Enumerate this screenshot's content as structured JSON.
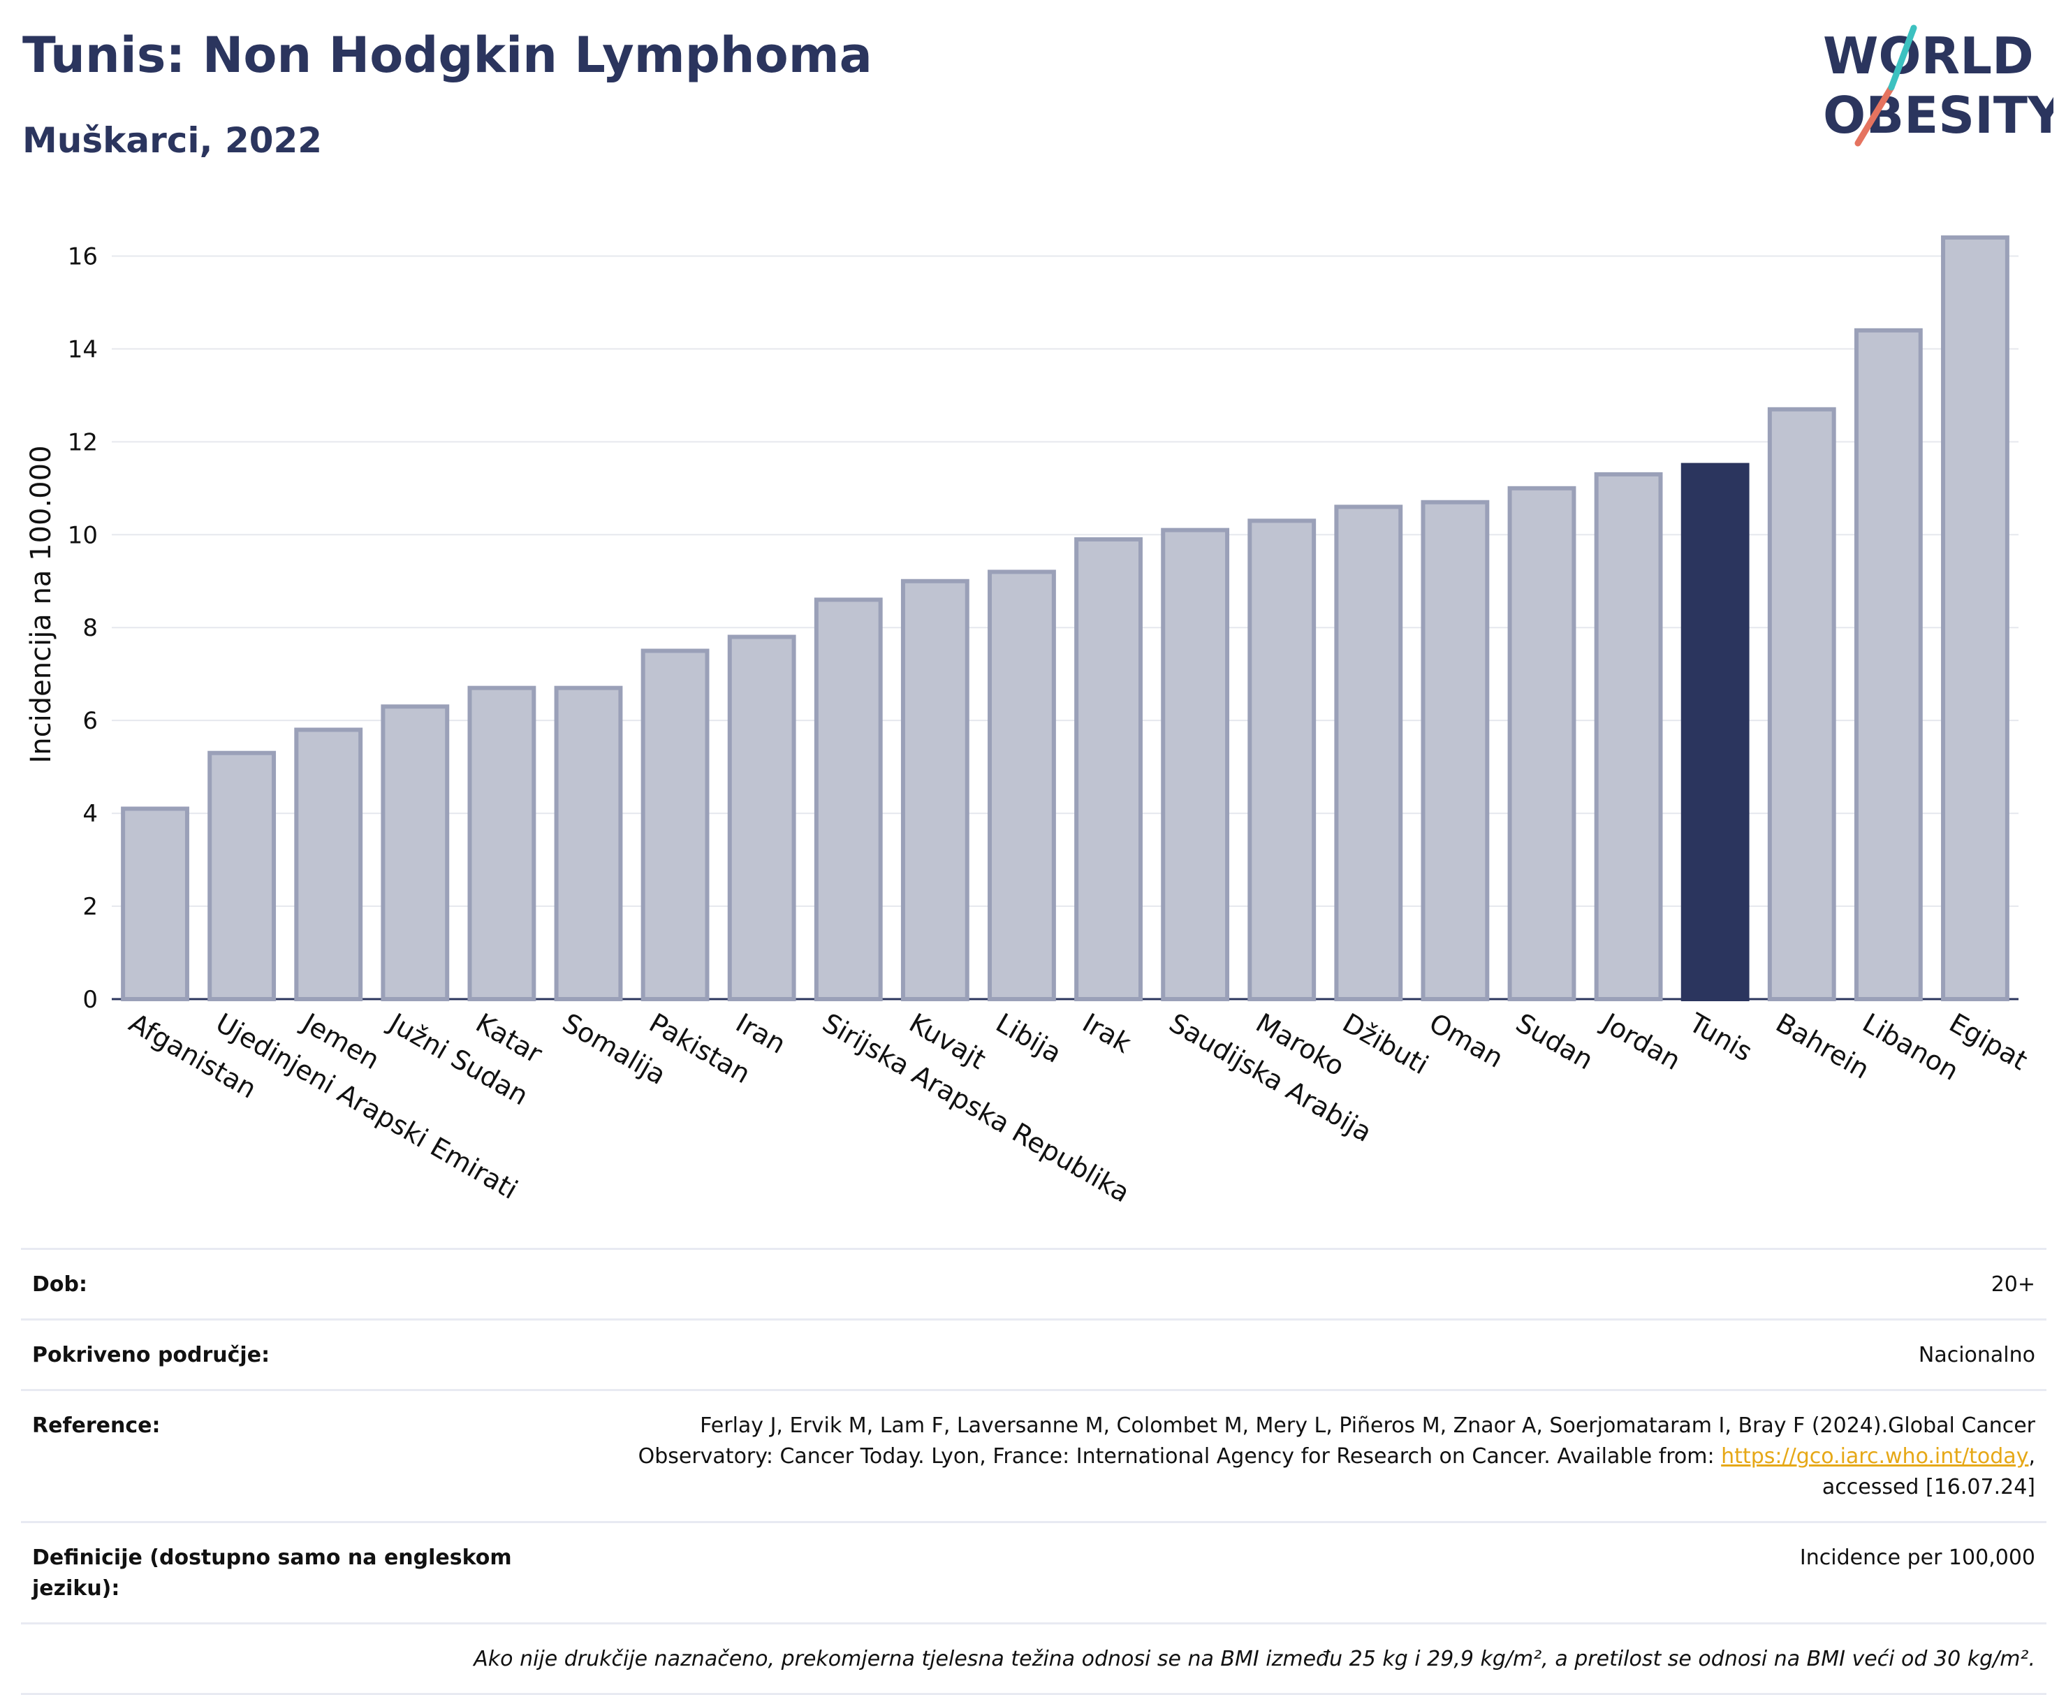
{
  "header": {
    "title": "Tunis: Non Hodgkin Lymphoma",
    "subtitle": "Muškarci, 2022",
    "logo_line1": "WORLD",
    "logo_line2": "OBESITY"
  },
  "chart_data": {
    "type": "bar",
    "ylabel": "Incidencija na 100.000",
    "ylim": [
      0,
      17
    ],
    "yticks": [
      0,
      2,
      4,
      6,
      8,
      10,
      12,
      14,
      16
    ],
    "grid": true,
    "highlight": "Tunis",
    "colors": {
      "bar": "#bfc3d1",
      "bar_edge": "#9aa0b8",
      "highlight": "#2b355e"
    },
    "categories": [
      "Afganistan",
      "Ujedinjeni Arapski Emirati",
      "Jemen",
      "Južni Sudan",
      "Katar",
      "Somalija",
      "Pakistan",
      "Iran",
      "Sirijska Arapska Republika",
      "Kuvajt",
      "Libija",
      "Irak",
      "Saudijska Arabija",
      "Maroko",
      "Džibuti",
      "Oman",
      "Sudan",
      "Jordan",
      "Tunis",
      "Bahrein",
      "Libanon",
      "Egipat"
    ],
    "values": [
      4.1,
      5.3,
      5.8,
      6.3,
      6.7,
      6.7,
      7.5,
      7.8,
      8.6,
      9.0,
      9.2,
      9.9,
      10.1,
      10.3,
      10.6,
      10.7,
      11.0,
      11.3,
      11.5,
      12.7,
      14.4,
      16.4
    ]
  },
  "info": {
    "age_label": "Dob:",
    "age_value": "20+",
    "coverage_label": "Pokriveno područje:",
    "coverage_value": "Nacionalno",
    "reference_label": "Reference:",
    "reference_line1": "Ferlay J, Ervik M, Lam F, Laversanne M, Colombet M, Mery L, Piñeros M, Znaor A, Soerjomataram I, Bray F (2024).Global Cancer",
    "reference_line2": "Observatory: Cancer Today. Lyon, France: International Agency for Research on Cancer. Available from: ",
    "reference_link": "https://gco.iarc.who.int/today",
    "reference_line2_end": ",",
    "reference_line3": "accessed [16.07.24]",
    "definitions_label": "Definicije (dostupno samo na engleskom jeziku):",
    "definitions_value": "Incidence per 100,000",
    "note": "Ako nije drukčije naznačeno, prekomjerna tjelesna težina odnosi se na BMI između 25 kg i 29,9 kg/m², a pretilost se odnosi na BMI veći od 30 kg/m²."
  }
}
